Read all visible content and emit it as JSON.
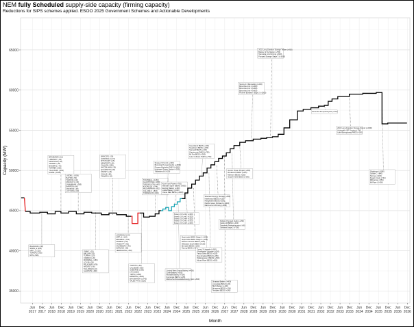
{
  "header": {
    "title_prefix": "NEM",
    "title_bold": "fully Scheduled",
    "title_rest": "supply-side capacity (firming capacity)",
    "subtitle": "Reductions for SIPS schemes applied. ESOO 2025 Government Schemes and Actionable Developments"
  },
  "chart_data": {
    "type": "line",
    "title": "NEM fully Scheduled supply-side capacity (firming capacity)",
    "subtitle": "Reductions for SIPS schemes applied. ESOO 2025 Government Schemes and Actionable Developments",
    "xlabel": "Month",
    "ylabel": "Capacity (MW)",
    "ylim": [
      33500,
      69000
    ],
    "y_ticks": [
      35000,
      40000,
      45000,
      50000,
      55000,
      60000,
      65000
    ],
    "x_ticks": [
      "Jun 2017",
      "Dec 2017",
      "Jun 2018",
      "Dec 2018",
      "Jun 2019",
      "Dec 2019",
      "Jun 2020",
      "Dec 2020",
      "Jun 2021",
      "Dec 2021",
      "Jun 2022",
      "Dec 2022",
      "Jun 2023",
      "Dec 2023",
      "Jun 2024",
      "Dec 2024",
      "Jun 2025",
      "Dec 2025",
      "Jun 2026",
      "Dec 2026",
      "Jun 2027",
      "Dec 2027",
      "Jun 2028",
      "Dec 2028",
      "Jun 2029",
      "Dec 2029",
      "Jun 2030",
      "Dec 2030",
      "Jun 2031",
      "Dec 2031",
      "Jun 2032",
      "Dec 2032",
      "Jun 2033",
      "Dec 2033",
      "Jun 2034",
      "Dec 2034",
      "Jun 2035",
      "Dec 2035",
      "Jun 2036",
      "Dec 2036"
    ],
    "grid": true,
    "legend": "none",
    "colors": {
      "black": "#000000",
      "red": "#e41a1c",
      "teal": "#17a3b3"
    },
    "series": [
      {
        "color": "black",
        "x": [
          2016.83,
          2017.0
        ],
        "y": [
          46600,
          46600
        ]
      },
      {
        "color": "red",
        "x": [
          2017.0,
          2017.05
        ],
        "y": [
          46600,
          44900
        ]
      },
      {
        "color": "black",
        "x": [
          2017.05,
          2017.3,
          2017.3,
          2017.8,
          2017.8,
          2018.2,
          2018.2,
          2018.6,
          2018.6,
          2018.9,
          2018.9,
          2019.3,
          2019.3,
          2019.7,
          2019.7,
          2020.1,
          2020.1,
          2020.5,
          2020.5,
          2021.0,
          2021.0,
          2021.4,
          2021.4,
          2021.8,
          2021.8,
          2022.3,
          2022.3,
          2022.55
        ],
        "y": [
          44900,
          44900,
          44700,
          44700,
          44800,
          44800,
          44600,
          44600,
          44900,
          44900,
          44700,
          44700,
          44900,
          44900,
          44600,
          44600,
          44800,
          44800,
          44700,
          44700,
          44500,
          44500,
          44700,
          44700,
          44500,
          44500,
          44300,
          44300
        ]
      },
      {
        "color": "red",
        "x": [
          2022.55,
          2022.6,
          2022.6,
          2022.9,
          2022.9,
          2023.0
        ],
        "y": [
          44300,
          44300,
          43400,
          43400,
          44700,
          44700
        ]
      },
      {
        "color": "black",
        "x": [
          2023.0,
          2023.2,
          2023.2,
          2023.5,
          2023.5,
          2023.8,
          2023.8,
          2024.0,
          2024.0,
          2024.1
        ],
        "y": [
          44700,
          44700,
          44200,
          44200,
          44300,
          44300,
          44600,
          44600,
          45000,
          45000
        ]
      },
      {
        "color": "teal",
        "x": [
          2024.1,
          2024.2,
          2024.2,
          2024.35,
          2024.35,
          2024.5,
          2024.5,
          2024.65,
          2024.65,
          2024.8,
          2024.8,
          2024.95,
          2024.95,
          2025.1,
          2025.1,
          2025.2
        ],
        "y": [
          45000,
          45000,
          45200,
          45200,
          45400,
          45400,
          45000,
          45000,
          45500,
          45500,
          45800,
          45800,
          46100,
          46100,
          46500,
          46500
        ]
      },
      {
        "color": "black",
        "x": [
          2025.2,
          2025.35,
          2025.35,
          2025.5,
          2025.5,
          2025.7,
          2025.7,
          2025.9,
          2025.9,
          2026.1,
          2026.1,
          2026.3,
          2026.3,
          2026.5,
          2026.5,
          2026.7,
          2026.7,
          2026.9,
          2026.9,
          2027.1,
          2027.1,
          2027.3,
          2027.3,
          2027.5,
          2027.5,
          2027.7,
          2027.7,
          2027.9,
          2027.9,
          2028.2,
          2028.2,
          2028.5,
          2028.5,
          2028.9,
          2028.9,
          2029.3,
          2029.3,
          2029.6,
          2029.6,
          2029.9,
          2029.9,
          2030.2,
          2030.2,
          2030.5,
          2030.5,
          2030.8,
          2030.8,
          2031.2,
          2031.2,
          2031.5,
          2031.5,
          2031.9,
          2031.9,
          2032.3,
          2032.3,
          2032.6,
          2032.6,
          2032.8,
          2032.8,
          2033.0,
          2033.0,
          2033.3,
          2033.3,
          2033.9,
          2033.9,
          2034.6,
          2034.6,
          2035.3,
          2035.3,
          2035.6,
          2035.6,
          2035.9,
          2035.9,
          2036.9
        ],
        "y": [
          46500,
          46500,
          47200,
          47200,
          47800,
          47800,
          48300,
          48300,
          48800,
          48800,
          49300,
          49300,
          49700,
          49700,
          50300,
          50300,
          50700,
          50700,
          51100,
          51100,
          51500,
          51500,
          51800,
          51800,
          52200,
          52200,
          52700,
          52700,
          53100,
          53100,
          53500,
          53500,
          53700,
          53700,
          53900,
          53900,
          54000,
          54000,
          54100,
          54100,
          54200,
          54200,
          54500,
          54500,
          55300,
          55300,
          56300,
          56300,
          57400,
          57400,
          57600,
          57600,
          57800,
          57800,
          58000,
          58000,
          58100,
          58100,
          58600,
          58600,
          58900,
          58900,
          59200,
          59200,
          59500,
          59500,
          59600,
          59600,
          59700,
          59700,
          55800,
          55800,
          55900,
          55900
        ]
      }
    ],
    "annotations_left": [
      [
        "BALDHSF1 (-88)",
        "SWAN_E (200)",
        "MPP_1 (-125)",
        "TORRA1 (-200)",
        "NPS (-546)"
      ],
      [
        "BRAEMAR2 (-10)",
        "LKBONNY (-60)",
        "MORTONS (-35)",
        "TAMAR1 (-45)",
        "BASSRV1 (-70)",
        "TORRB4 (-200)",
        "YALLOURN (-364)",
        "HAZEL (-1600)"
      ],
      [
        "LIDDELL (-500)",
        "BAYSW (-50)",
        "TARONG (-40)",
        "MACKAY1 (-30)",
        "SWANBANK (-385)",
        "BARRON (-60)",
        "MANNUM (-25)",
        "LOYYANG (-60)"
      ],
      [
        "TIBBLT (-25)",
        "BALLAR (-30)",
        "TORRA (-120)",
        "YAMBUK (-20)",
        "MORWELL (-189)",
        "LOYYB (-35)",
        "PELICANP (-478)",
        "ANGAST (-50)",
        "TALLAWAR (-40)",
        "GLADSTN (-280)"
      ],
      [
        "BARCSF1 (-20)",
        "HAWKDALE (-15)",
        "MTSTUART (-15)",
        "NEWPORT (-60)",
        "CALLIDE (-350)",
        "WOODLAWN (-30)",
        "QUARANTN (-95)",
        "SNOWY (-23)",
        "COLLIE (-80)",
        "TAMARV (-20)"
      ],
      [
        "LONSDALE (-19)",
        "MPP_2 (-124)",
        "ERARING (-720)",
        "MURRAY (-40)",
        "VALES PT (-62)",
        "GUNNEDAH (-40)",
        "DARLING (-30)",
        "JEERALANG (-450)"
      ],
      [
        "TUMUT3 (+60)",
        "CALLIDEB (-350)",
        "OSBORNE (-180)",
        "LYA (-2210)",
        "YWPS (-1450)",
        "ERARING (-2922)",
        "BAYSWATER (-2740)",
        "VALES PT B (-1320)"
      ],
      [
        "STANWELL (-1460)",
        "GLADSTONE (-1680)",
        "TARONG NTH (-443)",
        "KOGAN CK (-744)",
        "MILLMERRAN (-852)",
        "CALLIDE C (-840)",
        "TORRENS B (-800)"
      ]
    ],
    "annotations_right": [
      [
        "Snowy 2.0 Unit 1 (+333)",
        "Borumba Pumped Hydro (+2000)",
        "Pioneer-Burdekin PHES (+500)",
        "Hydrogen Power Station (+250)",
        "Tallawarra B (+320)"
      ],
      [
        "Kurri Kurri Power (+750)",
        "Waratah Super Battery (+850)",
        "Eraring Battery (+460)",
        "Liddell Battery (+500)",
        "Orana REZ BESS (+1000)"
      ],
      [
        "Central West Orana Battery (+400)",
        "Collie Battery (+500)",
        "Mortlake Battery (+300)",
        "Koorangie BESS (+185)",
        "Melbourne Renewable Energy Hub (+600)"
      ],
      [
        "Snowy 2.0 Unit 2 (+333)",
        "Snowy 2.0 Unit 3 (+333)",
        "Snowy 2.0 Unit 4 (+333)",
        "Snowy 2.0 Unit 5 (+333)",
        "Snowy 2.0 Unit 6 (+333)"
      ],
      [
        "Supernode BESS Stage 1 (+250)",
        "Supernode BESS Stage 2 (+250)",
        "Western Downs BESS (+255)",
        "Wandoan South BESS (+150)",
        "Brendale BESS (+200)",
        "Tarong BESS (+300)"
      ],
      [
        "Greenbank BESS (+200)",
        "Swanbank BESS (+250)",
        "Stanwell BESS (+300)",
        "Capricornia PHES (+750)",
        "Mt Fox BESS (+300)",
        "Lake Cethana PHES (+750)"
      ],
      [
        "Tumut 3 Upgrade (+300)",
        "Shoalhaven Upgrade (+200)",
        "Yanco Delta BESS (+200)",
        "New England BESS (+250)",
        "Wallerawang 9 BESS (+500)",
        "Mount Piper BESS (+500)"
      ],
      [
        "Wooreen Energy Storage (+350)",
        "Hazelwood BESS (+150)",
        "Rangebank BESS (+200)",
        "Pacific Green Portland (+1000)",
        "Marinus Link Firming (+300)"
      ],
      [
        "Dinawan Battery (+400)",
        "Limondale BESS (+50)",
        "Blyth Battery (+200)",
        "Bungama BESS (+150)",
        "Templers BESS (+240)"
      ],
      [
        "Kidston Pumped Hydro (+250)",
        "Cattle Hill BESS (+100)",
        "Tarraleah Redevelopment (+90)",
        "Cethana Stage 2 (+750)"
      ],
      [
        "Hunter Power Project (+660)",
        "Brinkworth BESS (+200)",
        "Mannum BESS (+250)",
        "Goyder North BESS (+300)"
      ],
      [
        "Snowy 2.0 Remaining (+333)",
        "Borumba Unit 2 (+500)",
        "Borumba Unit 3 (+500)",
        "Borumba Unit 4 (+500)",
        "Pioneer Burdekin Stage 2 (+2500)"
      ],
      [
        "2032 Long Duration Storage Tender (+800)",
        "Battery of the Nation (+750)",
        "Tasmania Link Firming (+600)",
        "Pumped Storage Stage 3 (+1000)"
      ],
      [
        "Borumba Pumped Hydro (+375)"
      ],
      [
        "2034 Long Duration Storage Round (+1500)",
        "Actionable ISP Firming (+700)",
        "Lake Burragorang PHES (+100)"
      ],
      [
        "Gladstone (-1680)",
        "Callide C (-840)",
        "Tarong (-1400)",
        "Kogan Creek (-744)",
        "Millmerran (-852)",
        "Mt Piper (-1400)"
      ]
    ]
  }
}
